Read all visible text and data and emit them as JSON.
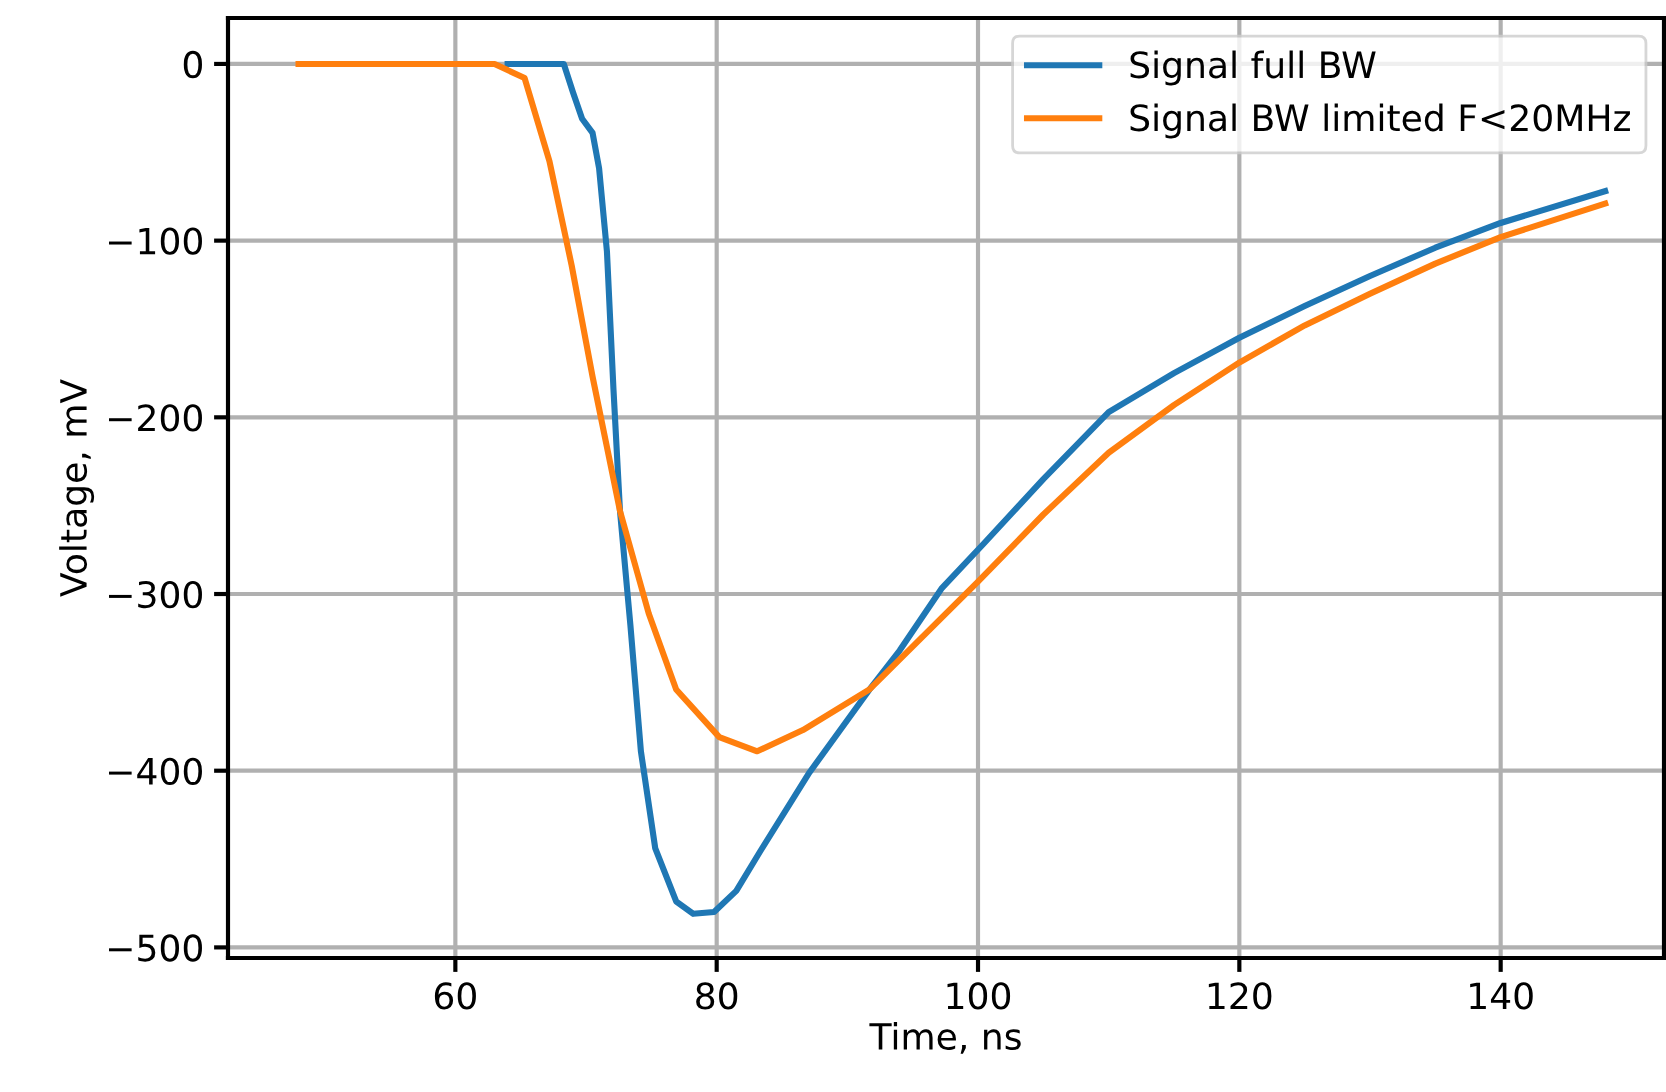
{
  "chart_data": {
    "type": "line",
    "xlabel": "Time, ns",
    "ylabel": "Voltage, mV",
    "xlim": [
      42.6,
      152.5
    ],
    "ylim": [
      -506,
      26
    ],
    "xticks": [
      60,
      80,
      100,
      120,
      140
    ],
    "yticks": [
      0,
      -100,
      -200,
      -300,
      -400,
      -500
    ],
    "grid": true,
    "legend": "top right",
    "line_style": "solid",
    "marker": "none",
    "series": [
      {
        "name": "Signal full BW",
        "color": "#1f77b4",
        "x": [
          64,
          66,
          68.3,
          69,
          69.7,
          70.5,
          71,
          71.6,
          72.1,
          72.6,
          73.4,
          74.2,
          75.3,
          76.9,
          78.2,
          79.8,
          81.5,
          83.3,
          87.1,
          91.7,
          94,
          97.2,
          100.5,
          105,
          110,
          115,
          120,
          125,
          130,
          135,
          140,
          148
        ],
        "values": [
          0,
          0,
          0,
          -16,
          -31,
          -39,
          -59,
          -106,
          -184,
          -253,
          -318,
          -389,
          -444,
          -474,
          -481,
          -480,
          -468,
          -446,
          -401,
          -354,
          -332,
          -297,
          -271,
          -235,
          -197,
          -175,
          -155,
          -137,
          -120,
          -104,
          -90,
          -72
        ]
      },
      {
        "name": "Signal BW limited F<20MHz",
        "color": "#ff7f0e",
        "x": [
          48,
          55,
          60,
          63,
          65.3,
          67.2,
          68.9,
          70.5,
          72.6,
          74.8,
          76.9,
          80.2,
          83.1,
          86.6,
          91.7,
          100,
          105,
          110,
          115,
          120,
          125,
          130,
          135,
          140,
          148
        ],
        "values": [
          0,
          0,
          0,
          0,
          -8,
          -55,
          -114,
          -177,
          -253,
          -311,
          -354,
          -381,
          -389,
          -377,
          -354,
          -293,
          -255,
          -220,
          -193,
          -169,
          -148,
          -130,
          -113,
          -98,
          -79
        ]
      }
    ]
  }
}
